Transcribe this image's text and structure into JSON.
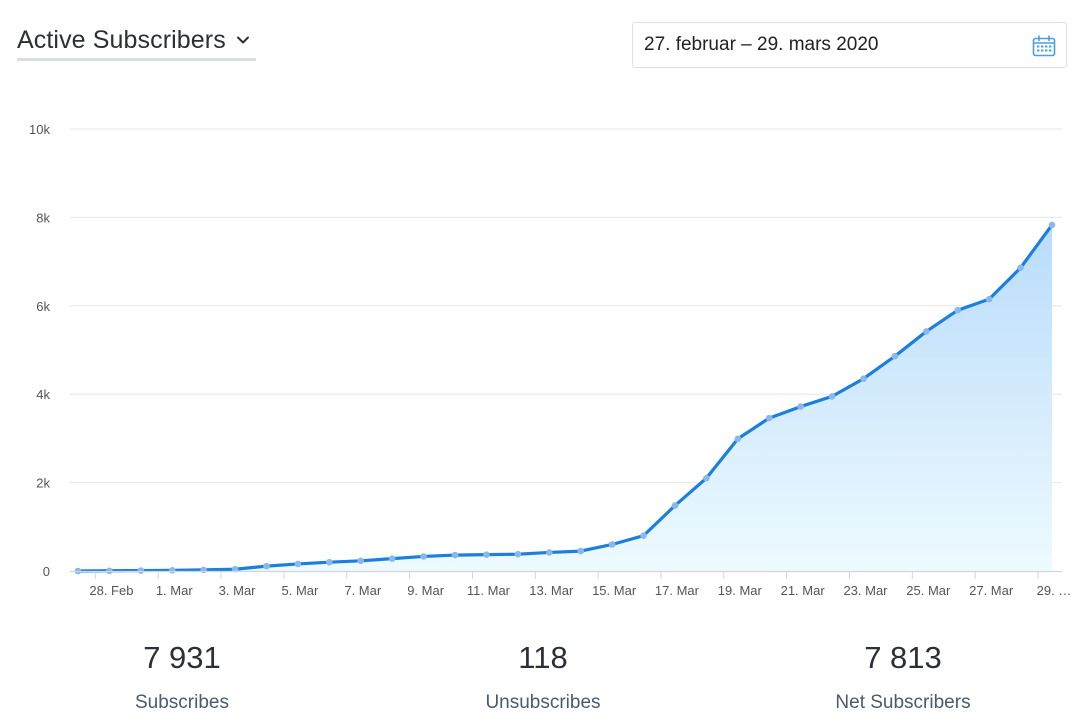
{
  "header": {
    "metric_label": "Active Subscribers",
    "date_range": "27. februar – 29. mars 2020"
  },
  "icons": {
    "dropdown": "chevron-down-icon",
    "calendar": "calendar-icon"
  },
  "colors": {
    "line": "#1a7fe0",
    "area_top": "#b9dcfb",
    "area_bottom": "#eefafe",
    "point": "#8bb8ea",
    "grid": "#e6e6e6",
    "calendar": "#4a9fe0"
  },
  "chart_data": {
    "type": "area",
    "x": [
      "27. Feb",
      "28. Feb",
      "29. Feb",
      "1. Mar",
      "2. Mar",
      "3. Mar",
      "4. Mar",
      "5. Mar",
      "6. Mar",
      "7. Mar",
      "8. Mar",
      "9. Mar",
      "10. Mar",
      "11. Mar",
      "12. Mar",
      "13. Mar",
      "14. Mar",
      "15. Mar",
      "16. Mar",
      "17. Mar",
      "18. Mar",
      "19. Mar",
      "20. Mar",
      "21. Mar",
      "22. Mar",
      "23. Mar",
      "24. Mar",
      "25. Mar",
      "26. Mar",
      "27. Mar",
      "28. Mar",
      "29. Mar"
    ],
    "x_tick_labels": [
      "28. Feb",
      "1. Mar",
      "3. Mar",
      "5. Mar",
      "7. Mar",
      "9. Mar",
      "11. Mar",
      "13. Mar",
      "15. Mar",
      "17. Mar",
      "19. Mar",
      "21. Mar",
      "23. Mar",
      "25. Mar",
      "27. Mar",
      "29. …"
    ],
    "series": [
      {
        "values": [
          0,
          5,
          10,
          15,
          25,
          40,
          110,
          160,
          200,
          230,
          280,
          330,
          360,
          370,
          380,
          420,
          450,
          600,
          800,
          1480,
          2100,
          2990,
          3460,
          3720,
          3950,
          4350,
          4860,
          5420,
          5900,
          6150,
          6860,
          7830
        ]
      }
    ],
    "y_ticks": [
      0,
      2000,
      4000,
      6000,
      8000,
      10000
    ],
    "y_tick_labels": [
      "0",
      "2k",
      "4k",
      "6k",
      "8k",
      "10k"
    ],
    "ylim": [
      0,
      10000
    ],
    "grid": true,
    "legend": "none"
  },
  "stats": [
    {
      "value": "7 931",
      "label": "Subscribes"
    },
    {
      "value": "118",
      "label": "Unsubscribes"
    },
    {
      "value": "7 813",
      "label": "Net Subscribers"
    }
  ]
}
